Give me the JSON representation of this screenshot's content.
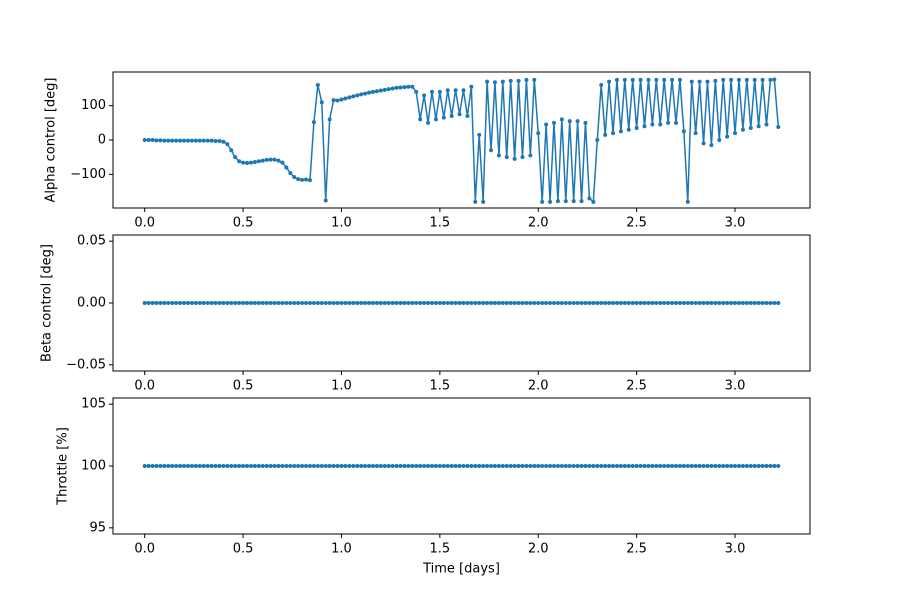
{
  "chart_data": [
    {
      "type": "line",
      "ylabel": "Alpha control [deg]",
      "x": [
        0,
        0.02,
        0.04,
        0.06,
        0.08,
        0.1,
        0.12,
        0.14,
        0.16,
        0.18,
        0.2,
        0.22,
        0.24,
        0.26,
        0.28,
        0.3,
        0.32,
        0.34,
        0.36,
        0.38,
        0.4,
        0.42,
        0.44,
        0.46,
        0.48,
        0.5,
        0.52,
        0.54,
        0.56,
        0.58,
        0.6,
        0.62,
        0.64,
        0.66,
        0.68,
        0.7,
        0.72,
        0.74,
        0.76,
        0.78,
        0.8,
        0.82,
        0.84,
        0.86,
        0.88,
        0.9,
        0.92,
        0.94,
        0.96,
        0.98,
        1,
        1.02,
        1.04,
        1.06,
        1.08,
        1.1,
        1.12,
        1.14,
        1.16,
        1.18,
        1.2,
        1.22,
        1.24,
        1.26,
        1.28,
        1.3,
        1.32,
        1.34,
        1.36,
        1.38,
        1.4,
        1.42,
        1.44,
        1.46,
        1.48,
        1.5,
        1.52,
        1.54,
        1.56,
        1.58,
        1.6,
        1.62,
        1.64,
        1.66,
        1.68,
        1.7,
        1.72,
        1.74,
        1.76,
        1.78,
        1.8,
        1.82,
        1.84,
        1.86,
        1.88,
        1.9,
        1.92,
        1.94,
        1.96,
        1.98,
        2,
        2.02,
        2.04,
        2.06,
        2.08,
        2.1,
        2.12,
        2.14,
        2.16,
        2.18,
        2.2,
        2.22,
        2.24,
        2.26,
        2.28,
        2.3,
        2.32,
        2.34,
        2.36,
        2.38,
        2.4,
        2.42,
        2.44,
        2.46,
        2.48,
        2.5,
        2.52,
        2.54,
        2.56,
        2.58,
        2.6,
        2.62,
        2.64,
        2.66,
        2.68,
        2.7,
        2.72,
        2.74,
        2.76,
        2.78,
        2.8,
        2.82,
        2.84,
        2.86,
        2.88,
        2.9,
        2.92,
        2.94,
        2.96,
        2.98,
        3,
        3.02,
        3.04,
        3.06,
        3.08,
        3.1,
        3.12,
        3.14,
        3.16,
        3.18,
        3.2,
        3.22
      ],
      "series": [
        {
          "color": "#1f77b4",
          "values": [
            0,
            0,
            0,
            -1,
            -1,
            -2,
            -2,
            -2,
            -2,
            -2,
            -2,
            -2,
            -2,
            -2,
            -2,
            -2,
            -2,
            -2,
            -3,
            -3,
            -5,
            -12,
            -30,
            -50,
            -62,
            -66,
            -67,
            -66,
            -64,
            -62,
            -60,
            -58,
            -57,
            -57,
            -60,
            -66,
            -80,
            -96,
            -108,
            -114,
            -116,
            -115,
            -117,
            52,
            160,
            110,
            -176,
            60,
            116,
            115,
            118,
            121,
            124,
            127,
            130,
            133,
            135,
            138,
            140,
            142,
            144,
            146,
            148,
            150,
            152,
            153,
            154,
            155,
            155,
            140,
            60,
            130,
            50,
            140,
            60,
            140,
            65,
            145,
            70,
            145,
            75,
            145,
            70,
            155,
            -180,
            15,
            -180,
            170,
            -30,
            168,
            -45,
            170,
            -50,
            172,
            -55,
            172,
            -50,
            175,
            -45,
            175,
            20,
            -180,
            45,
            -180,
            50,
            -178,
            60,
            -178,
            55,
            -178,
            55,
            -178,
            50,
            -170,
            -180,
            0,
            160,
            15,
            170,
            20,
            175,
            25,
            175,
            30,
            175,
            35,
            175,
            40,
            175,
            45,
            175,
            45,
            175,
            50,
            175,
            50,
            175,
            25,
            -180,
            170,
            20,
            170,
            -10,
            170,
            -15,
            172,
            0,
            175,
            10,
            175,
            20,
            175,
            30,
            175,
            35,
            175,
            40,
            175,
            45,
            175,
            176,
            38
          ]
        }
      ],
      "xlim": [
        -0.161,
        3.381
      ],
      "xticks": [
        {
          "value": 0,
          "label": "0.0"
        },
        0.5,
        {
          "value": 1,
          "label": "1.0"
        },
        1.5,
        {
          "value": 2,
          "label": "2.0"
        },
        2.5,
        {
          "value": 3,
          "label": "3.0"
        }
      ],
      "ylim": [
        -198,
        198
      ],
      "yticks": [
        {
          "value": -100,
          "label": "−100"
        },
        0,
        100
      ]
    },
    {
      "type": "line",
      "ylabel": "Beta control [deg]",
      "x": [
        0,
        0.02,
        0.04,
        0.06,
        0.08,
        0.1,
        0.12,
        0.14,
        0.16,
        0.18,
        0.2,
        0.22,
        0.24,
        0.26,
        0.28,
        0.3,
        0.32,
        0.34,
        0.36,
        0.38,
        0.4,
        0.42,
        0.44,
        0.46,
        0.48,
        0.5,
        0.52,
        0.54,
        0.56,
        0.58,
        0.6,
        0.62,
        0.64,
        0.66,
        0.68,
        0.7,
        0.72,
        0.74,
        0.76,
        0.78,
        0.8,
        0.82,
        0.84,
        0.86,
        0.88,
        0.9,
        0.92,
        0.94,
        0.96,
        0.98,
        1,
        1.02,
        1.04,
        1.06,
        1.08,
        1.1,
        1.12,
        1.14,
        1.16,
        1.18,
        1.2,
        1.22,
        1.24,
        1.26,
        1.28,
        1.3,
        1.32,
        1.34,
        1.36,
        1.38,
        1.4,
        1.42,
        1.44,
        1.46,
        1.48,
        1.5,
        1.52,
        1.54,
        1.56,
        1.58,
        1.6,
        1.62,
        1.64,
        1.66,
        1.68,
        1.7,
        1.72,
        1.74,
        1.76,
        1.78,
        1.8,
        1.82,
        1.84,
        1.86,
        1.88,
        1.9,
        1.92,
        1.94,
        1.96,
        1.98,
        2,
        2.02,
        2.04,
        2.06,
        2.08,
        2.1,
        2.12,
        2.14,
        2.16,
        2.18,
        2.2,
        2.22,
        2.24,
        2.26,
        2.28,
        2.3,
        2.32,
        2.34,
        2.36,
        2.38,
        2.4,
        2.42,
        2.44,
        2.46,
        2.48,
        2.5,
        2.52,
        2.54,
        2.56,
        2.58,
        2.6,
        2.62,
        2.64,
        2.66,
        2.68,
        2.7,
        2.72,
        2.74,
        2.76,
        2.78,
        2.8,
        2.82,
        2.84,
        2.86,
        2.88,
        2.9,
        2.92,
        2.94,
        2.96,
        2.98,
        3,
        3.02,
        3.04,
        3.06,
        3.08,
        3.1,
        3.12,
        3.14,
        3.16,
        3.18,
        3.2,
        3.22
      ],
      "series": [
        {
          "color": "#1f77b4",
          "values": [
            0,
            0,
            0,
            0,
            0,
            0,
            0,
            0,
            0,
            0,
            0,
            0,
            0,
            0,
            0,
            0,
            0,
            0,
            0,
            0,
            0,
            0,
            0,
            0,
            0,
            0,
            0,
            0,
            0,
            0,
            0,
            0,
            0,
            0,
            0,
            0,
            0,
            0,
            0,
            0,
            0,
            0,
            0,
            0,
            0,
            0,
            0,
            0,
            0,
            0,
            0,
            0,
            0,
            0,
            0,
            0,
            0,
            0,
            0,
            0,
            0,
            0,
            0,
            0,
            0,
            0,
            0,
            0,
            0,
            0,
            0,
            0,
            0,
            0,
            0,
            0,
            0,
            0,
            0,
            0,
            0,
            0,
            0,
            0,
            0,
            0,
            0,
            0,
            0,
            0,
            0,
            0,
            0,
            0,
            0,
            0,
            0,
            0,
            0,
            0,
            0,
            0,
            0,
            0,
            0,
            0,
            0,
            0,
            0,
            0,
            0,
            0,
            0,
            0,
            0,
            0,
            0,
            0,
            0,
            0,
            0,
            0,
            0,
            0,
            0,
            0,
            0,
            0,
            0,
            0,
            0,
            0,
            0,
            0,
            0,
            0,
            0,
            0,
            0,
            0,
            0,
            0,
            0,
            0,
            0,
            0,
            0,
            0,
            0,
            0,
            0,
            0,
            0,
            0,
            0,
            0,
            0,
            0,
            0,
            0,
            0,
            0
          ]
        }
      ],
      "xlim": [
        -0.161,
        3.381
      ],
      "xticks": [
        {
          "value": 0,
          "label": "0.0"
        },
        0.5,
        {
          "value": 1,
          "label": "1.0"
        },
        1.5,
        {
          "value": 2,
          "label": "2.0"
        },
        2.5,
        {
          "value": 3,
          "label": "3.0"
        }
      ],
      "ylim": [
        -0.055,
        0.055
      ],
      "yticks": [
        {
          "value": -0.05,
          "label": "−0.05"
        },
        {
          "value": 0,
          "label": "0.00"
        },
        0.05
      ]
    },
    {
      "type": "line",
      "ylabel": "Throttle [%]",
      "xlabel": "Time [days]",
      "x": [
        0,
        0.02,
        0.04,
        0.06,
        0.08,
        0.1,
        0.12,
        0.14,
        0.16,
        0.18,
        0.2,
        0.22,
        0.24,
        0.26,
        0.28,
        0.3,
        0.32,
        0.34,
        0.36,
        0.38,
        0.4,
        0.42,
        0.44,
        0.46,
        0.48,
        0.5,
        0.52,
        0.54,
        0.56,
        0.58,
        0.6,
        0.62,
        0.64,
        0.66,
        0.68,
        0.7,
        0.72,
        0.74,
        0.76,
        0.78,
        0.8,
        0.82,
        0.84,
        0.86,
        0.88,
        0.9,
        0.92,
        0.94,
        0.96,
        0.98,
        1,
        1.02,
        1.04,
        1.06,
        1.08,
        1.1,
        1.12,
        1.14,
        1.16,
        1.18,
        1.2,
        1.22,
        1.24,
        1.26,
        1.28,
        1.3,
        1.32,
        1.34,
        1.36,
        1.38,
        1.4,
        1.42,
        1.44,
        1.46,
        1.48,
        1.5,
        1.52,
        1.54,
        1.56,
        1.58,
        1.6,
        1.62,
        1.64,
        1.66,
        1.68,
        1.7,
        1.72,
        1.74,
        1.76,
        1.78,
        1.8,
        1.82,
        1.84,
        1.86,
        1.88,
        1.9,
        1.92,
        1.94,
        1.96,
        1.98,
        2,
        2.02,
        2.04,
        2.06,
        2.08,
        2.1,
        2.12,
        2.14,
        2.16,
        2.18,
        2.2,
        2.22,
        2.24,
        2.26,
        2.28,
        2.3,
        2.32,
        2.34,
        2.36,
        2.38,
        2.4,
        2.42,
        2.44,
        2.46,
        2.48,
        2.5,
        2.52,
        2.54,
        2.56,
        2.58,
        2.6,
        2.62,
        2.64,
        2.66,
        2.68,
        2.7,
        2.72,
        2.74,
        2.76,
        2.78,
        2.8,
        2.82,
        2.84,
        2.86,
        2.88,
        2.9,
        2.92,
        2.94,
        2.96,
        2.98,
        3,
        3.02,
        3.04,
        3.06,
        3.08,
        3.1,
        3.12,
        3.14,
        3.16,
        3.18,
        3.2,
        3.22
      ],
      "series": [
        {
          "color": "#1f77b4",
          "values": [
            100,
            100,
            100,
            100,
            100,
            100,
            100,
            100,
            100,
            100,
            100,
            100,
            100,
            100,
            100,
            100,
            100,
            100,
            100,
            100,
            100,
            100,
            100,
            100,
            100,
            100,
            100,
            100,
            100,
            100,
            100,
            100,
            100,
            100,
            100,
            100,
            100,
            100,
            100,
            100,
            100,
            100,
            100,
            100,
            100,
            100,
            100,
            100,
            100,
            100,
            100,
            100,
            100,
            100,
            100,
            100,
            100,
            100,
            100,
            100,
            100,
            100,
            100,
            100,
            100,
            100,
            100,
            100,
            100,
            100,
            100,
            100,
            100,
            100,
            100,
            100,
            100,
            100,
            100,
            100,
            100,
            100,
            100,
            100,
            100,
            100,
            100,
            100,
            100,
            100,
            100,
            100,
            100,
            100,
            100,
            100,
            100,
            100,
            100,
            100,
            100,
            100,
            100,
            100,
            100,
            100,
            100,
            100,
            100,
            100,
            100,
            100,
            100,
            100,
            100,
            100,
            100,
            100,
            100,
            100,
            100,
            100,
            100,
            100,
            100,
            100,
            100,
            100,
            100,
            100,
            100,
            100,
            100,
            100,
            100,
            100,
            100,
            100,
            100,
            100,
            100,
            100,
            100,
            100,
            100,
            100,
            100,
            100,
            100,
            100,
            100,
            100,
            100,
            100,
            100,
            100,
            100,
            100,
            100,
            100,
            100,
            100
          ]
        }
      ],
      "xlim": [
        -0.161,
        3.381
      ],
      "xticks": [
        {
          "value": 0,
          "label": "0.0"
        },
        0.5,
        {
          "value": 1,
          "label": "1.0"
        },
        1.5,
        {
          "value": 2,
          "label": "2.0"
        },
        2.5,
        {
          "value": 3,
          "label": "3.0"
        }
      ],
      "ylim": [
        94.5,
        105.5
      ],
      "yticks": [
        95,
        100,
        105
      ]
    }
  ]
}
